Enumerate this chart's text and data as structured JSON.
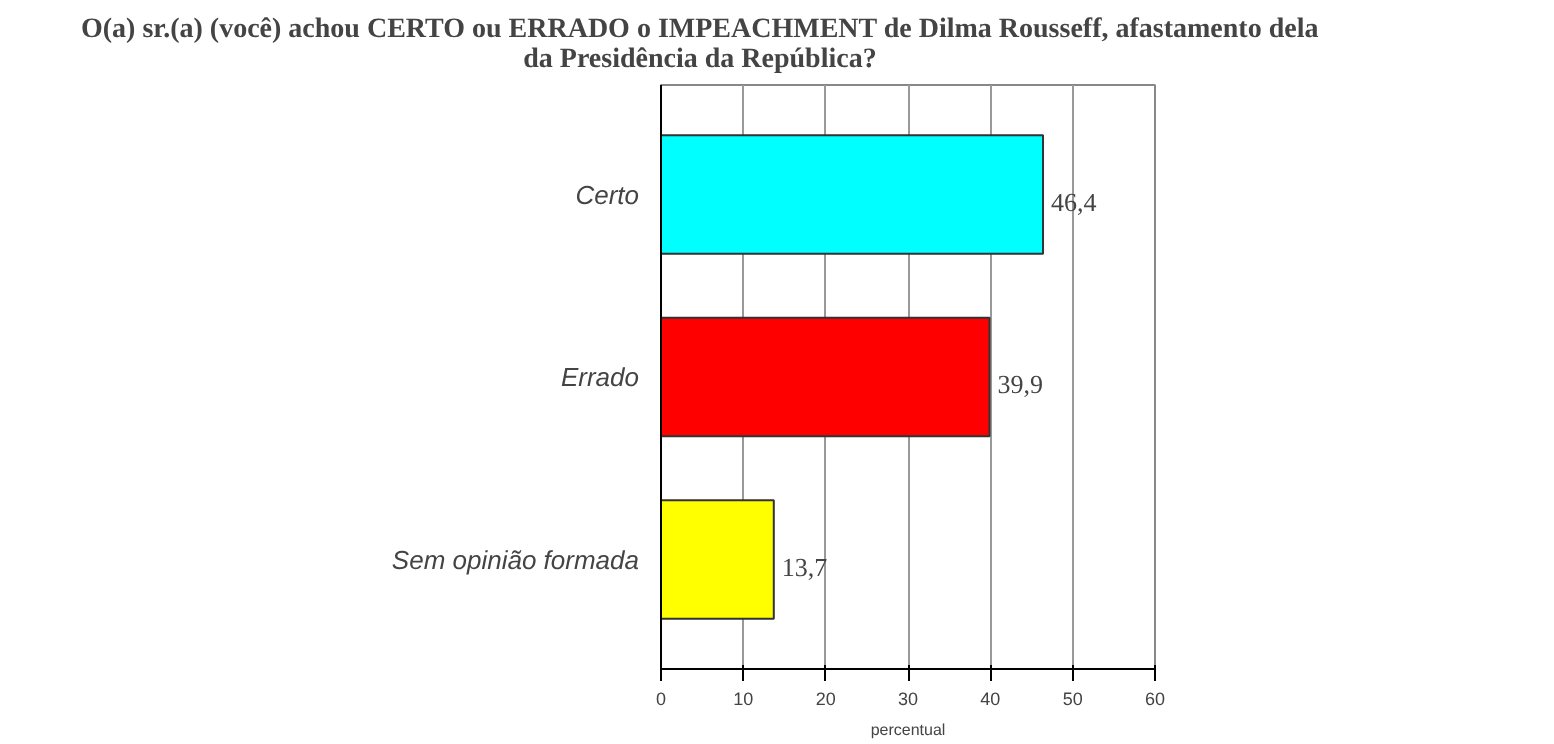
{
  "chart_data": {
    "type": "bar",
    "orientation": "horizontal",
    "title": "O(a) sr.(a) (você) achou CERTO ou ERRADO o IMPEACHMENT de Dilma Rousseff, afastamento dela\nda Presidência da República?",
    "xlabel": "percentual",
    "categories": [
      "Certo",
      "Errado",
      "Sem opinião formada"
    ],
    "values": [
      46.4,
      39.9,
      13.7
    ],
    "colors": [
      "#00ffff",
      "#ff0000",
      "#ffff00"
    ],
    "value_labels": [
      "46,4",
      "39,9",
      "13,7"
    ],
    "xlim": [
      0,
      60
    ],
    "xticks": [
      0,
      10,
      20,
      30,
      40,
      50,
      60
    ],
    "grid": "x",
    "legend": false
  }
}
